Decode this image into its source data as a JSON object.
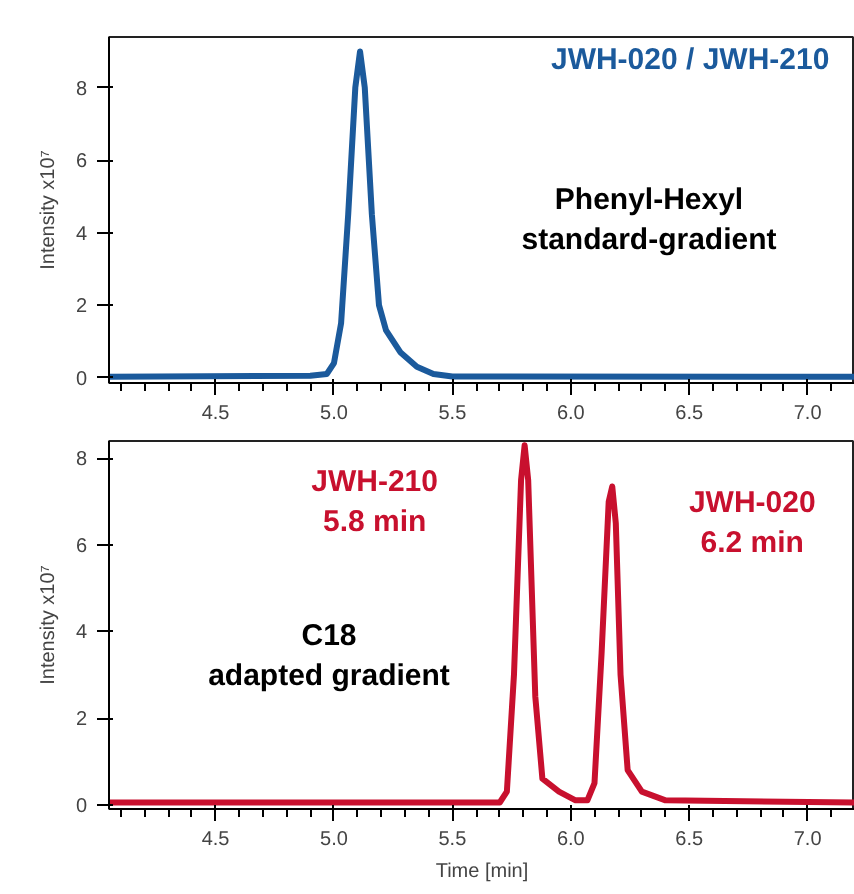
{
  "chart_data": [
    {
      "type": "line",
      "ylabel": "Intensity x10⁷",
      "xlim": [
        4.05,
        7.2
      ],
      "ylim": [
        -0.15,
        9.4
      ],
      "xticks": [
        4.5,
        {
          "value": 5,
          "label": "5.0"
        },
        5.5,
        {
          "value": 6,
          "label": "6.0"
        },
        6.5,
        {
          "value": 7,
          "label": "7.0"
        }
      ],
      "yticks": [
        0,
        2,
        4,
        6,
        8
      ],
      "grid": false,
      "legend": false,
      "x": [
        4.05,
        4.9,
        4.97,
        5.0,
        5.03,
        5.06,
        5.09,
        5.11,
        5.13,
        5.16,
        5.19,
        5.22,
        5.28,
        5.35,
        5.42,
        5.5,
        7.2
      ],
      "series": [
        {
          "name": "JWH-020 / JWH-210",
          "color": "#1b5a9c",
          "values": [
            0.02,
            0.05,
            0.1,
            0.4,
            1.5,
            4.5,
            8.0,
            9.0,
            8.0,
            4.5,
            2.0,
            1.3,
            0.7,
            0.3,
            0.1,
            0.03,
            0.02
          ]
        }
      ],
      "annotations": [
        "Phenyl-Hexyl\nstandard-gradient"
      ]
    },
    {
      "type": "line",
      "xlabel": "Time [min]",
      "ylabel": "Intensity x10⁷",
      "xlim": [
        4.05,
        7.2
      ],
      "ylim": [
        -0.1,
        8.4
      ],
      "xticks": [
        4.5,
        {
          "value": 5,
          "label": "5.0"
        },
        5.5,
        {
          "value": 6,
          "label": "6.0"
        },
        6.5,
        {
          "value": 7,
          "label": "7.0"
        }
      ],
      "yticks": [
        0,
        2,
        4,
        6,
        8
      ],
      "grid": false,
      "legend": false,
      "x": [
        4.05,
        5.7,
        5.73,
        5.76,
        5.79,
        5.805,
        5.82,
        5.85,
        5.88,
        5.95,
        6.02,
        6.07,
        6.1,
        6.13,
        6.16,
        6.175,
        6.19,
        6.21,
        6.24,
        6.3,
        6.4,
        7.2
      ],
      "series": [
        {
          "color": "#c8102e",
          "values": [
            0.05,
            0.05,
            0.3,
            3.0,
            7.5,
            8.3,
            7.5,
            2.5,
            0.6,
            0.3,
            0.1,
            0.1,
            0.5,
            3.5,
            7.0,
            7.35,
            6.5,
            3.0,
            0.8,
            0.3,
            0.1,
            0.05
          ]
        }
      ],
      "annotations": [
        {
          "text": "JWH-210\n5.8 min",
          "x": 5.805,
          "y": 8.3
        },
        {
          "text": "JWH-020\n6.2 min",
          "x": 6.175,
          "y": 7.35
        },
        "C18\nadapted gradient"
      ]
    }
  ]
}
